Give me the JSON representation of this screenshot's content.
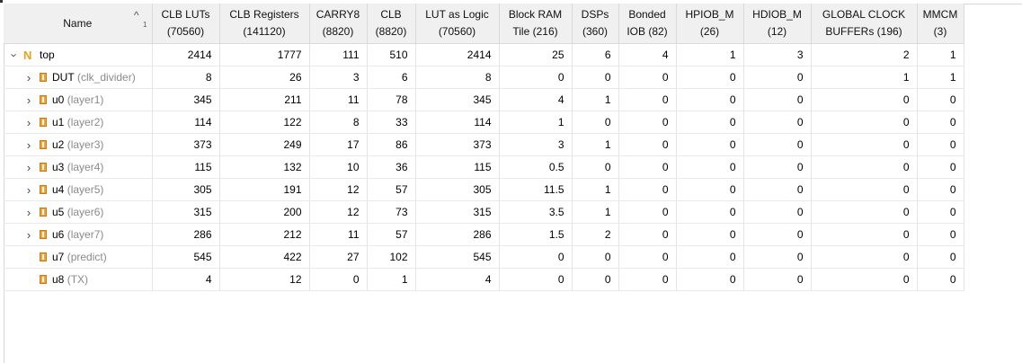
{
  "columns": [
    {
      "label": "Name",
      "sort_index": "1"
    },
    {
      "label": "CLB LUTs (70560)"
    },
    {
      "label": "CLB Registers (141120)"
    },
    {
      "label": "CARRY8 (8820)"
    },
    {
      "label": "CLB (8820)"
    },
    {
      "label": "LUT as Logic (70560)"
    },
    {
      "label": "Block RAM Tile (216)"
    },
    {
      "label": "DSPs (360)"
    },
    {
      "label": "Bonded IOB (82)"
    },
    {
      "label": "HPIOB_M (26)"
    },
    {
      "label": "HDIOB_M (12)"
    },
    {
      "label": "GLOBAL CLOCK BUFFERs (196)"
    },
    {
      "label": "MMCM (3)"
    }
  ],
  "rows": [
    {
      "name": "top",
      "module": "",
      "expander": "expanded",
      "icon": "top-module-icon",
      "values": [
        "2414",
        "1777",
        "111",
        "510",
        "2414",
        "25",
        "6",
        "4",
        "1",
        "3",
        "2",
        "1"
      ]
    },
    {
      "name": "DUT",
      "module": "(clk_divider)",
      "expander": "collapsed",
      "icon": "instance-icon",
      "values": [
        "8",
        "26",
        "3",
        "6",
        "8",
        "0",
        "0",
        "0",
        "0",
        "0",
        "1",
        "1"
      ]
    },
    {
      "name": "u0",
      "module": "(layer1)",
      "expander": "collapsed",
      "icon": "instance-icon",
      "values": [
        "345",
        "211",
        "11",
        "78",
        "345",
        "4",
        "1",
        "0",
        "0",
        "0",
        "0",
        "0"
      ]
    },
    {
      "name": "u1",
      "module": "(layer2)",
      "expander": "collapsed",
      "icon": "instance-icon",
      "values": [
        "114",
        "122",
        "8",
        "33",
        "114",
        "1",
        "0",
        "0",
        "0",
        "0",
        "0",
        "0"
      ]
    },
    {
      "name": "u2",
      "module": "(layer3)",
      "expander": "collapsed",
      "icon": "instance-icon",
      "values": [
        "373",
        "249",
        "17",
        "86",
        "373",
        "3",
        "1",
        "0",
        "0",
        "0",
        "0",
        "0"
      ]
    },
    {
      "name": "u3",
      "module": "(layer4)",
      "expander": "collapsed",
      "icon": "instance-icon",
      "values": [
        "115",
        "132",
        "10",
        "36",
        "115",
        "0.5",
        "0",
        "0",
        "0",
        "0",
        "0",
        "0"
      ]
    },
    {
      "name": "u4",
      "module": "(layer5)",
      "expander": "collapsed",
      "icon": "instance-icon",
      "values": [
        "305",
        "191",
        "12",
        "57",
        "305",
        "11.5",
        "1",
        "0",
        "0",
        "0",
        "0",
        "0"
      ]
    },
    {
      "name": "u5",
      "module": "(layer6)",
      "expander": "collapsed",
      "icon": "instance-icon",
      "values": [
        "315",
        "200",
        "12",
        "73",
        "315",
        "3.5",
        "1",
        "0",
        "0",
        "0",
        "0",
        "0"
      ]
    },
    {
      "name": "u6",
      "module": "(layer7)",
      "expander": "collapsed",
      "icon": "instance-icon",
      "values": [
        "286",
        "212",
        "11",
        "57",
        "286",
        "1.5",
        "2",
        "0",
        "0",
        "0",
        "0",
        "0"
      ]
    },
    {
      "name": "u7",
      "module": "(predict)",
      "expander": "none",
      "icon": "instance-icon",
      "values": [
        "545",
        "422",
        "27",
        "102",
        "545",
        "0",
        "0",
        "0",
        "0",
        "0",
        "0",
        "0"
      ]
    },
    {
      "name": "u8",
      "module": "(TX)",
      "expander": "none",
      "icon": "instance-icon",
      "values": [
        "4",
        "12",
        "0",
        "1",
        "4",
        "0",
        "0",
        "0",
        "0",
        "0",
        "0",
        "0"
      ]
    }
  ]
}
